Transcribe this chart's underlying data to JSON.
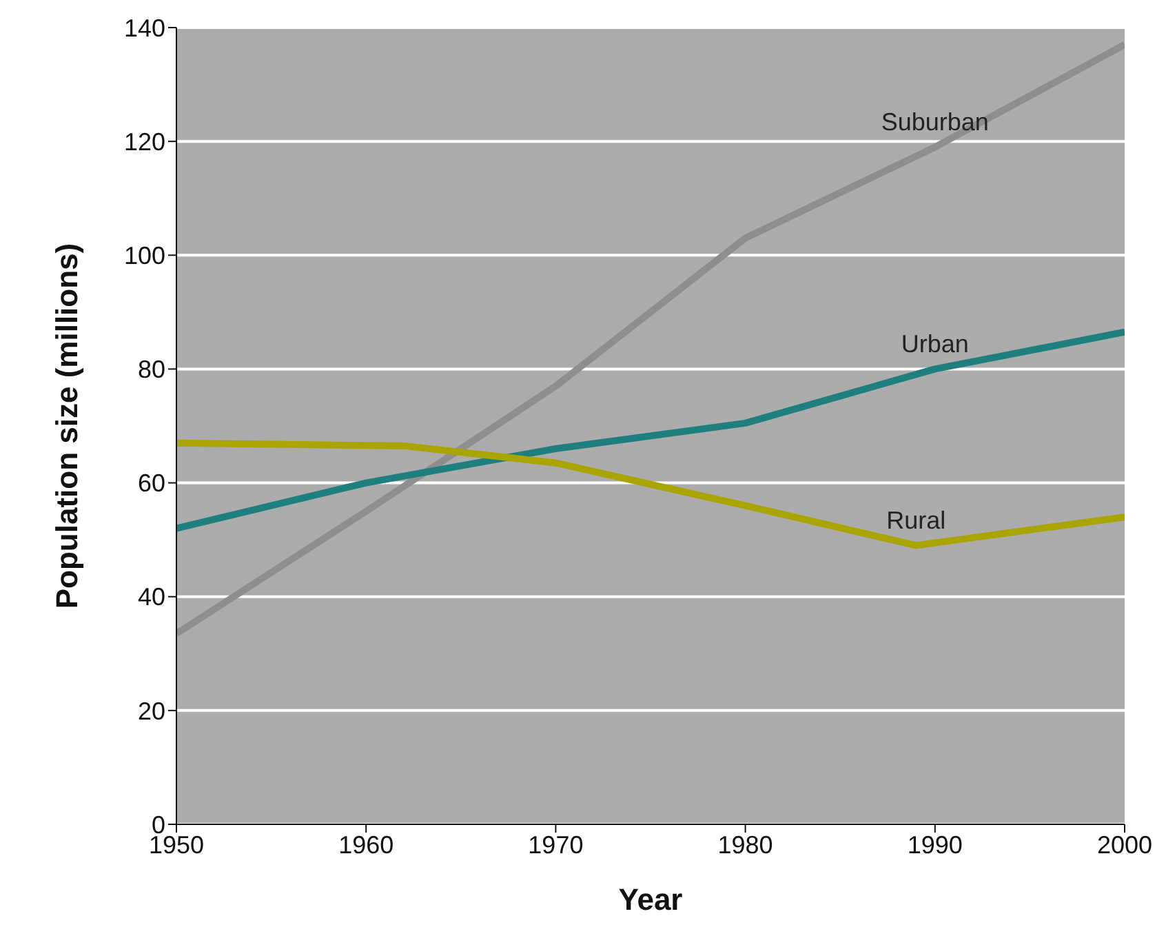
{
  "chart_data": {
    "type": "line",
    "xlabel": "Year",
    "ylabel": "Population size (millions)",
    "xlim": [
      1950,
      2000
    ],
    "xticks": [
      1950,
      1960,
      1970,
      1980,
      1990,
      2000
    ],
    "ylim": [
      0,
      140
    ],
    "yticks": [
      0,
      20,
      40,
      60,
      80,
      100,
      120,
      140
    ],
    "grid": "y",
    "legend": false,
    "marker": "none",
    "line_style": "solid",
    "series": [
      {
        "name": "Suburban",
        "color": "#8e8e8e",
        "x": [
          1950,
          1960,
          1970,
          1980,
          1990,
          2000
        ],
        "values": [
          33.5,
          55,
          77,
          103,
          119,
          137
        ]
      },
      {
        "name": "Urban",
        "color": "#1f7f7f",
        "x": [
          1950,
          1960,
          1970,
          1980,
          1990,
          2000
        ],
        "values": [
          52,
          60,
          66,
          70.5,
          80,
          86.5
        ]
      },
      {
        "name": "Rural",
        "color": "#a9a400",
        "x": [
          1950,
          1962,
          1970,
          1980,
          1989,
          2000
        ],
        "values": [
          67,
          66.5,
          63.5,
          56,
          49,
          54
        ]
      }
    ]
  }
}
